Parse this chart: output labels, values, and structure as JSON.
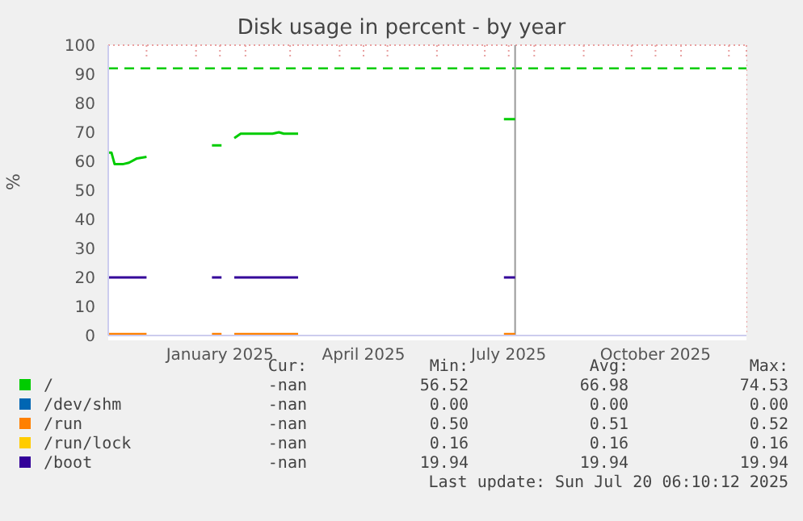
{
  "chart_data": {
    "type": "line",
    "title": "Disk usage in percent - by year",
    "ylabel": "%",
    "x": [
      "2024-11-07",
      "2024-11-09",
      "2024-11-11",
      "2024-11-16",
      "2024-11-20",
      "2024-11-25",
      "2024-12-01",
      "2024-12-20",
      "2025-01-11",
      "2025-01-17",
      "2025-01-21",
      "2025-01-25",
      "2025-01-29",
      "2025-02-18",
      "2025-02-22",
      "2025-02-25",
      "2025-03-06",
      "2025-05-01",
      "2025-07-13",
      "2025-07-20"
    ],
    "series": [
      {
        "name": "/",
        "color": "#00cc00",
        "values": [
          63,
          63,
          59,
          59,
          59.5,
          61,
          61.5,
          null,
          65.5,
          65.5,
          null,
          68,
          69.5,
          69.5,
          70,
          69.5,
          69.5,
          null,
          74.5,
          74.5
        ]
      },
      {
        "name": "/dev/shm",
        "color": "#0066b3",
        "values": [
          null,
          null,
          null,
          null,
          null,
          null,
          null,
          null,
          null,
          null,
          null,
          null,
          null,
          null,
          null,
          null,
          null,
          null,
          null,
          null
        ]
      },
      {
        "name": "/run",
        "color": "#ff8000",
        "values": [
          0.5,
          0.5,
          0.5,
          0.5,
          0.5,
          0.5,
          0.5,
          null,
          0.5,
          0.5,
          null,
          0.5,
          0.5,
          0.5,
          0.5,
          0.5,
          0.5,
          null,
          0.5,
          0.5
        ]
      },
      {
        "name": "/run/lock",
        "color": "#ffcc00",
        "values": [
          null,
          null,
          null,
          null,
          null,
          null,
          null,
          null,
          null,
          null,
          null,
          null,
          null,
          null,
          null,
          null,
          null,
          null,
          null,
          null
        ]
      },
      {
        "name": "/boot",
        "color": "#330099",
        "values": [
          20,
          20,
          20,
          20,
          20,
          20,
          20,
          null,
          20,
          20,
          null,
          20,
          20,
          20,
          20,
          20,
          20,
          null,
          20,
          20
        ]
      }
    ],
    "xlim": [
      "2024-11-07",
      "2025-12-12"
    ],
    "xticks": [
      {
        "value": "2024-12-01",
        "label": null
      },
      {
        "value": "2025-01-01",
        "label": null
      },
      {
        "value": "2025-01-16",
        "label": "January 2025"
      },
      {
        "value": "2025-02-01",
        "label": null
      },
      {
        "value": "2025-03-01",
        "label": null
      },
      {
        "value": "2025-04-01",
        "label": null
      },
      {
        "value": "2025-04-16",
        "label": "April 2025"
      },
      {
        "value": "2025-05-01",
        "label": null
      },
      {
        "value": "2025-06-01",
        "label": null
      },
      {
        "value": "2025-07-01",
        "label": null
      },
      {
        "value": "2025-07-16",
        "label": "July 2025"
      },
      {
        "value": "2025-08-01",
        "label": null
      },
      {
        "value": "2025-09-01",
        "label": null
      },
      {
        "value": "2025-10-01",
        "label": null
      },
      {
        "value": "2025-10-16",
        "label": "October 2025"
      },
      {
        "value": "2025-11-01",
        "label": null
      },
      {
        "value": "2025-12-01",
        "label": null
      }
    ],
    "ylim": [
      0,
      100
    ],
    "yticks": [
      0,
      10,
      20,
      30,
      40,
      50,
      60,
      70,
      80,
      90,
      100
    ],
    "grid": true,
    "legend": "bottom",
    "marker": "none",
    "line_style": "solid",
    "ref_lines": [
      {
        "axis": "y",
        "value": 92,
        "color": "#00cc00",
        "line_style": "dashed"
      },
      {
        "axis": "x",
        "value": "2025-07-20",
        "color": "#999999",
        "line_style": "solid"
      }
    ],
    "annotations": [
      "Cur:",
      "Min:",
      "Avg:",
      "Max:",
      "-nan",
      "56.52",
      "66.98",
      "74.53",
      "-nan",
      "0.00",
      "0.00",
      "0.00",
      "-nan",
      "0.50",
      "0.51",
      "0.52",
      "-nan",
      "0.16",
      "0.16",
      "0.16",
      "-nan",
      "19.94",
      "19.94",
      "19.94",
      "Last update: Sun Jul 20 06:10:12 2025"
    ]
  }
}
